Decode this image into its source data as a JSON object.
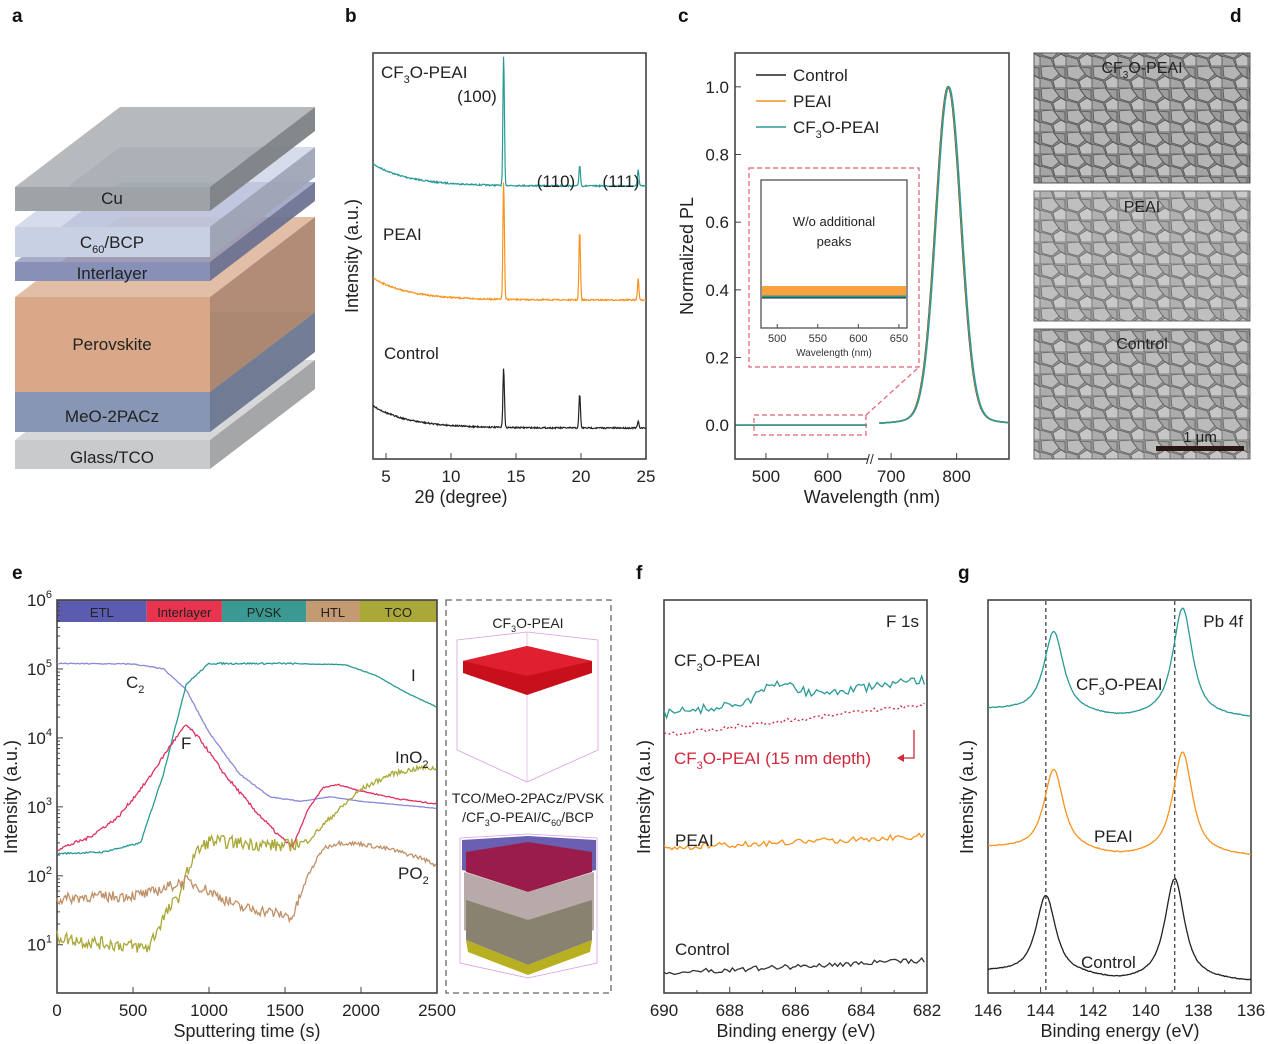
{
  "panels": {
    "a": {
      "label": "a",
      "layers": [
        {
          "name": "Cu",
          "color": "#9da3a6"
        },
        {
          "name": "C60/BCP",
          "color": "#c8d0e4"
        },
        {
          "name": "Interlayer",
          "color": "#8890b8"
        },
        {
          "name": "Perovskite",
          "color": "#d9a888"
        },
        {
          "name": "MeO-2PACz",
          "color": "#8696b4"
        },
        {
          "name": "Glass/TCO",
          "color": "#c9cacc"
        }
      ]
    },
    "d": {
      "label": "d",
      "images": [
        {
          "caption": "CF3O-PEAI"
        },
        {
          "caption": "PEAI"
        },
        {
          "caption": "Control"
        }
      ],
      "scale_bar": "1 μm"
    },
    "e_inset": {
      "top_caption": "CF3O-PEAI",
      "bottom_caption_line1": "TCO/MeO-2PACz/PVSK",
      "bottom_caption_line2": "/CF3O-PEAI/C60/BCP"
    }
  },
  "chart_data": [
    {
      "id": "b",
      "panel_label": "b",
      "type": "line",
      "title": "",
      "xlabel": "2θ (degree)",
      "ylabel": "Intensity (a.u.)",
      "xlim": [
        4,
        25
      ],
      "xticks": [
        5,
        10,
        15,
        20,
        25
      ],
      "offset_stacked": true,
      "series": [
        {
          "name": "CF3O-PEAI",
          "color": "#2a9a96",
          "peaks": [
            {
              "x": 14.05,
              "h": 1.0
            },
            {
              "x": 19.9,
              "h": 0.16
            },
            {
              "x": 24.4,
              "h": 0.13
            }
          ]
        },
        {
          "name": "PEAI",
          "color": "#f7931e",
          "peaks": [
            {
              "x": 14.05,
              "h": 0.95
            },
            {
              "x": 19.9,
              "h": 0.55
            },
            {
              "x": 24.4,
              "h": 0.17
            }
          ]
        },
        {
          "name": "Control",
          "color": "#222222",
          "peaks": [
            {
              "x": 14.05,
              "h": 1.0
            },
            {
              "x": 19.9,
              "h": 0.56
            },
            {
              "x": 24.4,
              "h": 0.11
            }
          ]
        }
      ],
      "annotations": [
        "(100)",
        "(110)",
        "(111)"
      ]
    },
    {
      "id": "c",
      "panel_label": "c",
      "type": "line",
      "xlabel": "Wavelength (nm)",
      "ylabel": "Normalized PL",
      "xlim": [
        450,
        880
      ],
      "axis_break": [
        665,
        680
      ],
      "ylim": [
        -0.1,
        1.1
      ],
      "xticks": [
        500,
        600,
        700,
        800
      ],
      "yticks": [
        0.0,
        0.2,
        0.4,
        0.6,
        0.8,
        1.0
      ],
      "peak_center": 787,
      "peak_fwhm": 45,
      "series": [
        {
          "name": "Control",
          "color": "#222222"
        },
        {
          "name": "PEAI",
          "color": "#f7931e"
        },
        {
          "name": "CF3O-PEAI",
          "color": "#2a9a96"
        }
      ],
      "inset": {
        "text_line1": "W/o additional",
        "text_line2": "peaks",
        "xlabel": "Wavelength (nm)",
        "xlim": [
          480,
          660
        ],
        "xticks": [
          500,
          550,
          600,
          650
        ]
      }
    },
    {
      "id": "e",
      "panel_label": "e",
      "type": "line",
      "xlabel": "Sputtering time (s)",
      "ylabel": "Intensity (a.u.)",
      "yscale": "log",
      "xlim": [
        0,
        2500
      ],
      "ylim_exp": [
        0.3,
        6
      ],
      "xticks": [
        0,
        500,
        1000,
        1500,
        2000,
        2500
      ],
      "yticks": [
        "10^1",
        "10^2",
        "10^3",
        "10^4",
        "10^5",
        "10^6"
      ],
      "regions": [
        {
          "name": "ETL",
          "from": 0,
          "to": 590,
          "color": "#5b5bb0"
        },
        {
          "name": "Interlayer",
          "from": 590,
          "to": 1085,
          "color": "#e8344e"
        },
        {
          "name": "PVSK",
          "from": 1085,
          "to": 1640,
          "color": "#3a9a93"
        },
        {
          "name": "HTL",
          "from": 1640,
          "to": 1990,
          "color": "#c49a72"
        },
        {
          "name": "TCO",
          "from": 1990,
          "to": 2500,
          "color": "#a9a838"
        }
      ],
      "series": [
        {
          "name": "C2",
          "label": "C₂",
          "color": "#8a8ad8",
          "points": [
            [
              0,
              120000
            ],
            [
              500,
              118000
            ],
            [
              700,
              100000
            ],
            [
              850,
              50000
            ],
            [
              1000,
              12000
            ],
            [
              1200,
              3000
            ],
            [
              1400,
              1400
            ],
            [
              1600,
              1200
            ],
            [
              1800,
              1400
            ],
            [
              2000,
              1200
            ],
            [
              2500,
              950
            ]
          ]
        },
        {
          "name": "I",
          "label": "I",
          "color": "#2a9a96",
          "points": [
            [
              0,
              210
            ],
            [
              300,
              220
            ],
            [
              550,
              300
            ],
            [
              700,
              3000
            ],
            [
              850,
              60000
            ],
            [
              1000,
              120000
            ],
            [
              1500,
              120000
            ],
            [
              1900,
              115000
            ],
            [
              2100,
              80000
            ],
            [
              2300,
              45000
            ],
            [
              2500,
              28000
            ]
          ]
        },
        {
          "name": "F",
          "label": "F",
          "color": "#e03060",
          "points": [
            [
              0,
              240
            ],
            [
              200,
              350
            ],
            [
              400,
              700
            ],
            [
              600,
              2500
            ],
            [
              750,
              8000
            ],
            [
              850,
              15500
            ],
            [
              950,
              9000
            ],
            [
              1100,
              3000
            ],
            [
              1300,
              900
            ],
            [
              1450,
              400
            ],
            [
              1550,
              260
            ],
            [
              1650,
              900
            ],
            [
              1750,
              1900
            ],
            [
              1850,
              2100
            ],
            [
              2000,
              1700
            ],
            [
              2250,
              1300
            ],
            [
              2500,
              1100
            ]
          ]
        },
        {
          "name": "InO2",
          "label": "InO₂",
          "color": "#a9a838",
          "points": [
            [
              0,
              13
            ],
            [
              200,
              11
            ],
            [
              400,
              10
            ],
            [
              600,
              9
            ],
            [
              700,
              25
            ],
            [
              800,
              50
            ],
            [
              900,
              200
            ],
            [
              1000,
              320
            ],
            [
              1200,
              300
            ],
            [
              1500,
              270
            ],
            [
              1650,
              320
            ],
            [
              1800,
              700
            ],
            [
              2000,
              1800
            ],
            [
              2200,
              3000
            ],
            [
              2400,
              3700
            ],
            [
              2500,
              3600
            ]
          ]
        },
        {
          "name": "PO2",
          "label": "PO₂",
          "color": "#c09066",
          "points": [
            [
              0,
              45
            ],
            [
              200,
              50
            ],
            [
              400,
              50
            ],
            [
              600,
              55
            ],
            [
              850,
              85
            ],
            [
              1000,
              60
            ],
            [
              1200,
              35
            ],
            [
              1400,
              30
            ],
            [
              1550,
              25
            ],
            [
              1650,
              100
            ],
            [
              1750,
              250
            ],
            [
              1850,
              300
            ],
            [
              2000,
              290
            ],
            [
              2200,
              240
            ],
            [
              2400,
              180
            ],
            [
              2500,
              140
            ]
          ]
        }
      ]
    },
    {
      "id": "f",
      "panel_label": "f",
      "type": "line",
      "xlabel": "Binding energy (eV)",
      "ylabel": "Intensity (a.u.)",
      "xlim": [
        690,
        682
      ],
      "xticks": [
        690,
        688,
        686,
        684,
        682
      ],
      "corner_label": "F 1s",
      "series": [
        {
          "name": "CF3O-PEAI",
          "color": "#2a9a96",
          "style": "solid"
        },
        {
          "name": "CF3O-PEAI (15 nm depth)",
          "color": "#d0283c",
          "style": "dotted"
        },
        {
          "name": "PEAI",
          "color": "#f7931e",
          "style": "solid"
        },
        {
          "name": "Control",
          "color": "#333333",
          "style": "solid"
        }
      ]
    },
    {
      "id": "g",
      "panel_label": "g",
      "type": "line",
      "xlabel": "Binding energy (eV)",
      "ylabel": "Intensity (a.u.)",
      "xlim": [
        146,
        136
      ],
      "xticks": [
        146,
        144,
        142,
        140,
        138,
        136
      ],
      "corner_label": "Pb 4f",
      "reference_lines": [
        143.8,
        138.9
      ],
      "series": [
        {
          "name": "CF3O-PEAI",
          "color": "#2a9a96",
          "peaks": [
            143.5,
            138.6
          ]
        },
        {
          "name": "PEAI",
          "color": "#f7931e",
          "peaks": [
            143.5,
            138.6
          ]
        },
        {
          "name": "Control",
          "color": "#222222",
          "peaks": [
            143.8,
            138.9
          ]
        }
      ]
    }
  ]
}
